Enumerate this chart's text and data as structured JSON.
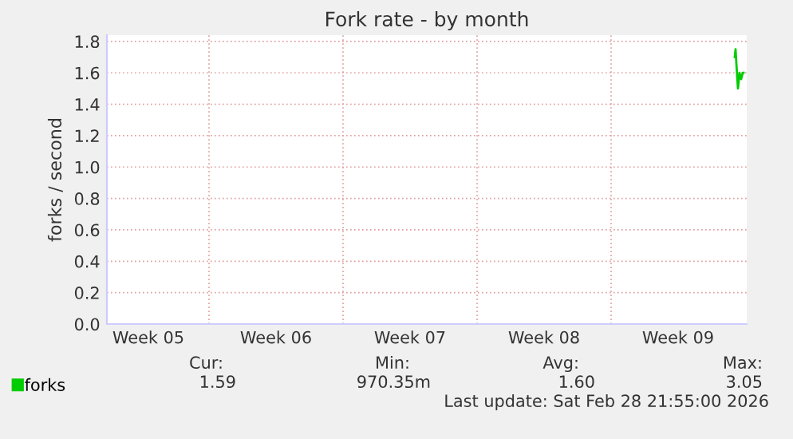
{
  "chart_data": {
    "type": "line",
    "title": "Fork rate - by month",
    "ylabel": "forks / second",
    "x": [
      "2026-03-01T11:00",
      "2026-03-01T12:00",
      "2026-03-01T13:00",
      "2026-03-01T15:00",
      "2026-03-01T17:00",
      "2026-03-01T19:00",
      "2026-03-01T21:00",
      "2026-03-01T22:00"
    ],
    "series": [
      {
        "name": "forks",
        "color": "#00cc00",
        "values": [
          1.7,
          1.75,
          1.66,
          1.5,
          1.6,
          1.56,
          1.6,
          1.6
        ]
      }
    ],
    "xlim": [
      "2026-01-27T16:00",
      "2026-03-02T02:00"
    ],
    "xticks": [
      {
        "value": "2026-01-29T20:00",
        "label": "Week 05"
      },
      {
        "value": "2026-02-02",
        "label": null
      },
      {
        "value": "2026-02-05T12:00",
        "label": "Week 06"
      },
      {
        "value": "2026-02-09",
        "label": null
      },
      {
        "value": "2026-02-12T12:00",
        "label": "Week 07"
      },
      {
        "value": "2026-02-16",
        "label": null
      },
      {
        "value": "2026-02-19T12:00",
        "label": "Week 08"
      },
      {
        "value": "2026-02-23",
        "label": null
      },
      {
        "value": "2026-02-26T12:00",
        "label": "Week 09"
      }
    ],
    "ylim": [
      0,
      1.84
    ],
    "yticks": [
      {
        "value": 0,
        "label": "0.0"
      },
      {
        "value": 0.2,
        "label": "0.2"
      },
      {
        "value": 0.4,
        "label": "0.4"
      },
      {
        "value": 0.6,
        "label": "0.6"
      },
      {
        "value": 0.8,
        "label": "0.8"
      },
      {
        "value": 1.0,
        "label": "1.0"
      },
      {
        "value": 1.2,
        "label": "1.2"
      },
      {
        "value": 1.4,
        "label": "1.4"
      },
      {
        "value": 1.6,
        "label": "1.6"
      },
      {
        "value": 1.8,
        "label": "1.8"
      }
    ],
    "grid": true,
    "legend": "bottom left",
    "annotations": [
      "Cur:",
      "1.59",
      "Min:",
      "970.35m",
      "Avg:",
      "1.60",
      "Max:",
      "3.05",
      "Last update: Sat Feb 28 21:55:00 2026"
    ]
  }
}
